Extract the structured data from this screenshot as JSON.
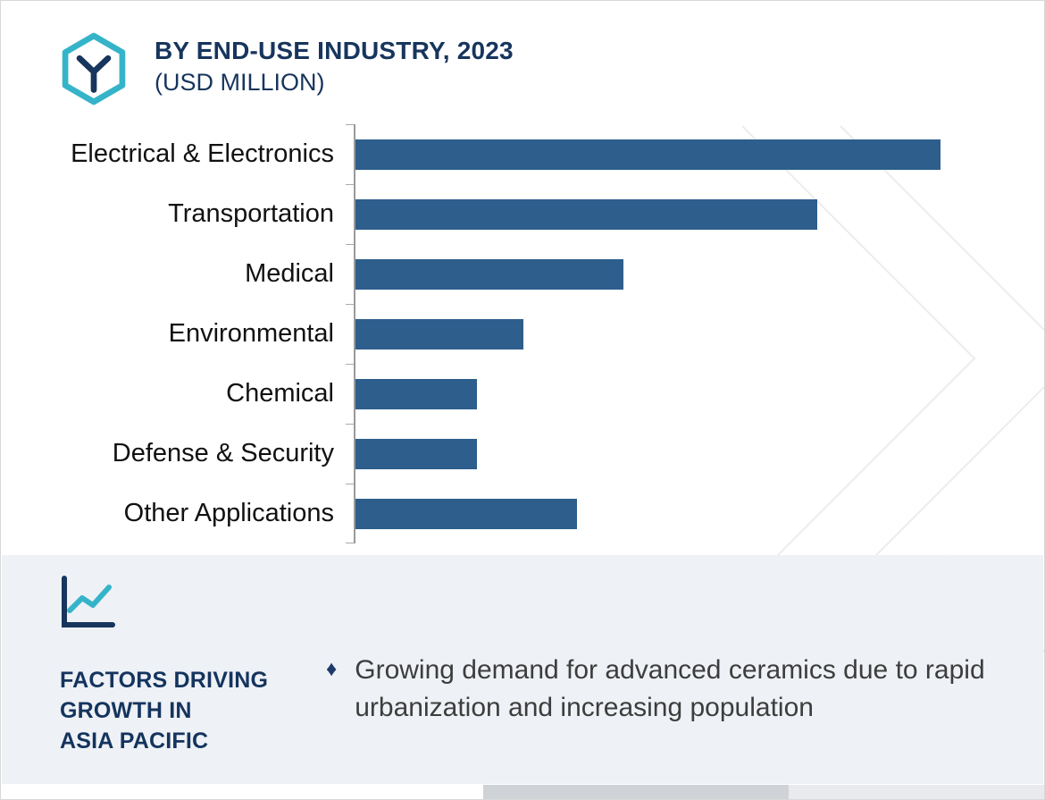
{
  "header": {
    "title_line1": "BY END-USE INDUSTRY, 2023",
    "title_line2": "(USD MILLION)",
    "logo_icon": "hexagon-y-logo"
  },
  "chart_data": {
    "type": "bar",
    "orientation": "horizontal",
    "title": "BY END-USE INDUSTRY, 2023 (USD MILLION)",
    "categories": [
      "Electrical & Electronics",
      "Transportation",
      "Medical",
      "Environmental",
      "Chemical",
      "Defense & Security",
      "Other Applications"
    ],
    "values": [
      100,
      79,
      46,
      29,
      21,
      21,
      38
    ],
    "value_note": "relative bar lengths as % of longest bar; numeric axis values not shown in image",
    "xlabel": "",
    "ylabel": "",
    "legend": false,
    "gridlines": false,
    "bar_color": "#2d5e8c",
    "axis_color": "#9a9a9a"
  },
  "footer": {
    "icon": "line-chart-icon",
    "heading": "FACTORS DRIVING\nGROWTH IN\nASIA PACIFIC",
    "bullet_char": "♦",
    "bullet_text": "Growing demand for advanced ceramics due to rapid urbanization and increasing population"
  },
  "colors": {
    "accent_teal": "#35b4c9",
    "navy": "#17355d",
    "bar_blue": "#2d5e8c",
    "footer_bg": "#eef1f5",
    "body_text": "#3d3d3d"
  }
}
